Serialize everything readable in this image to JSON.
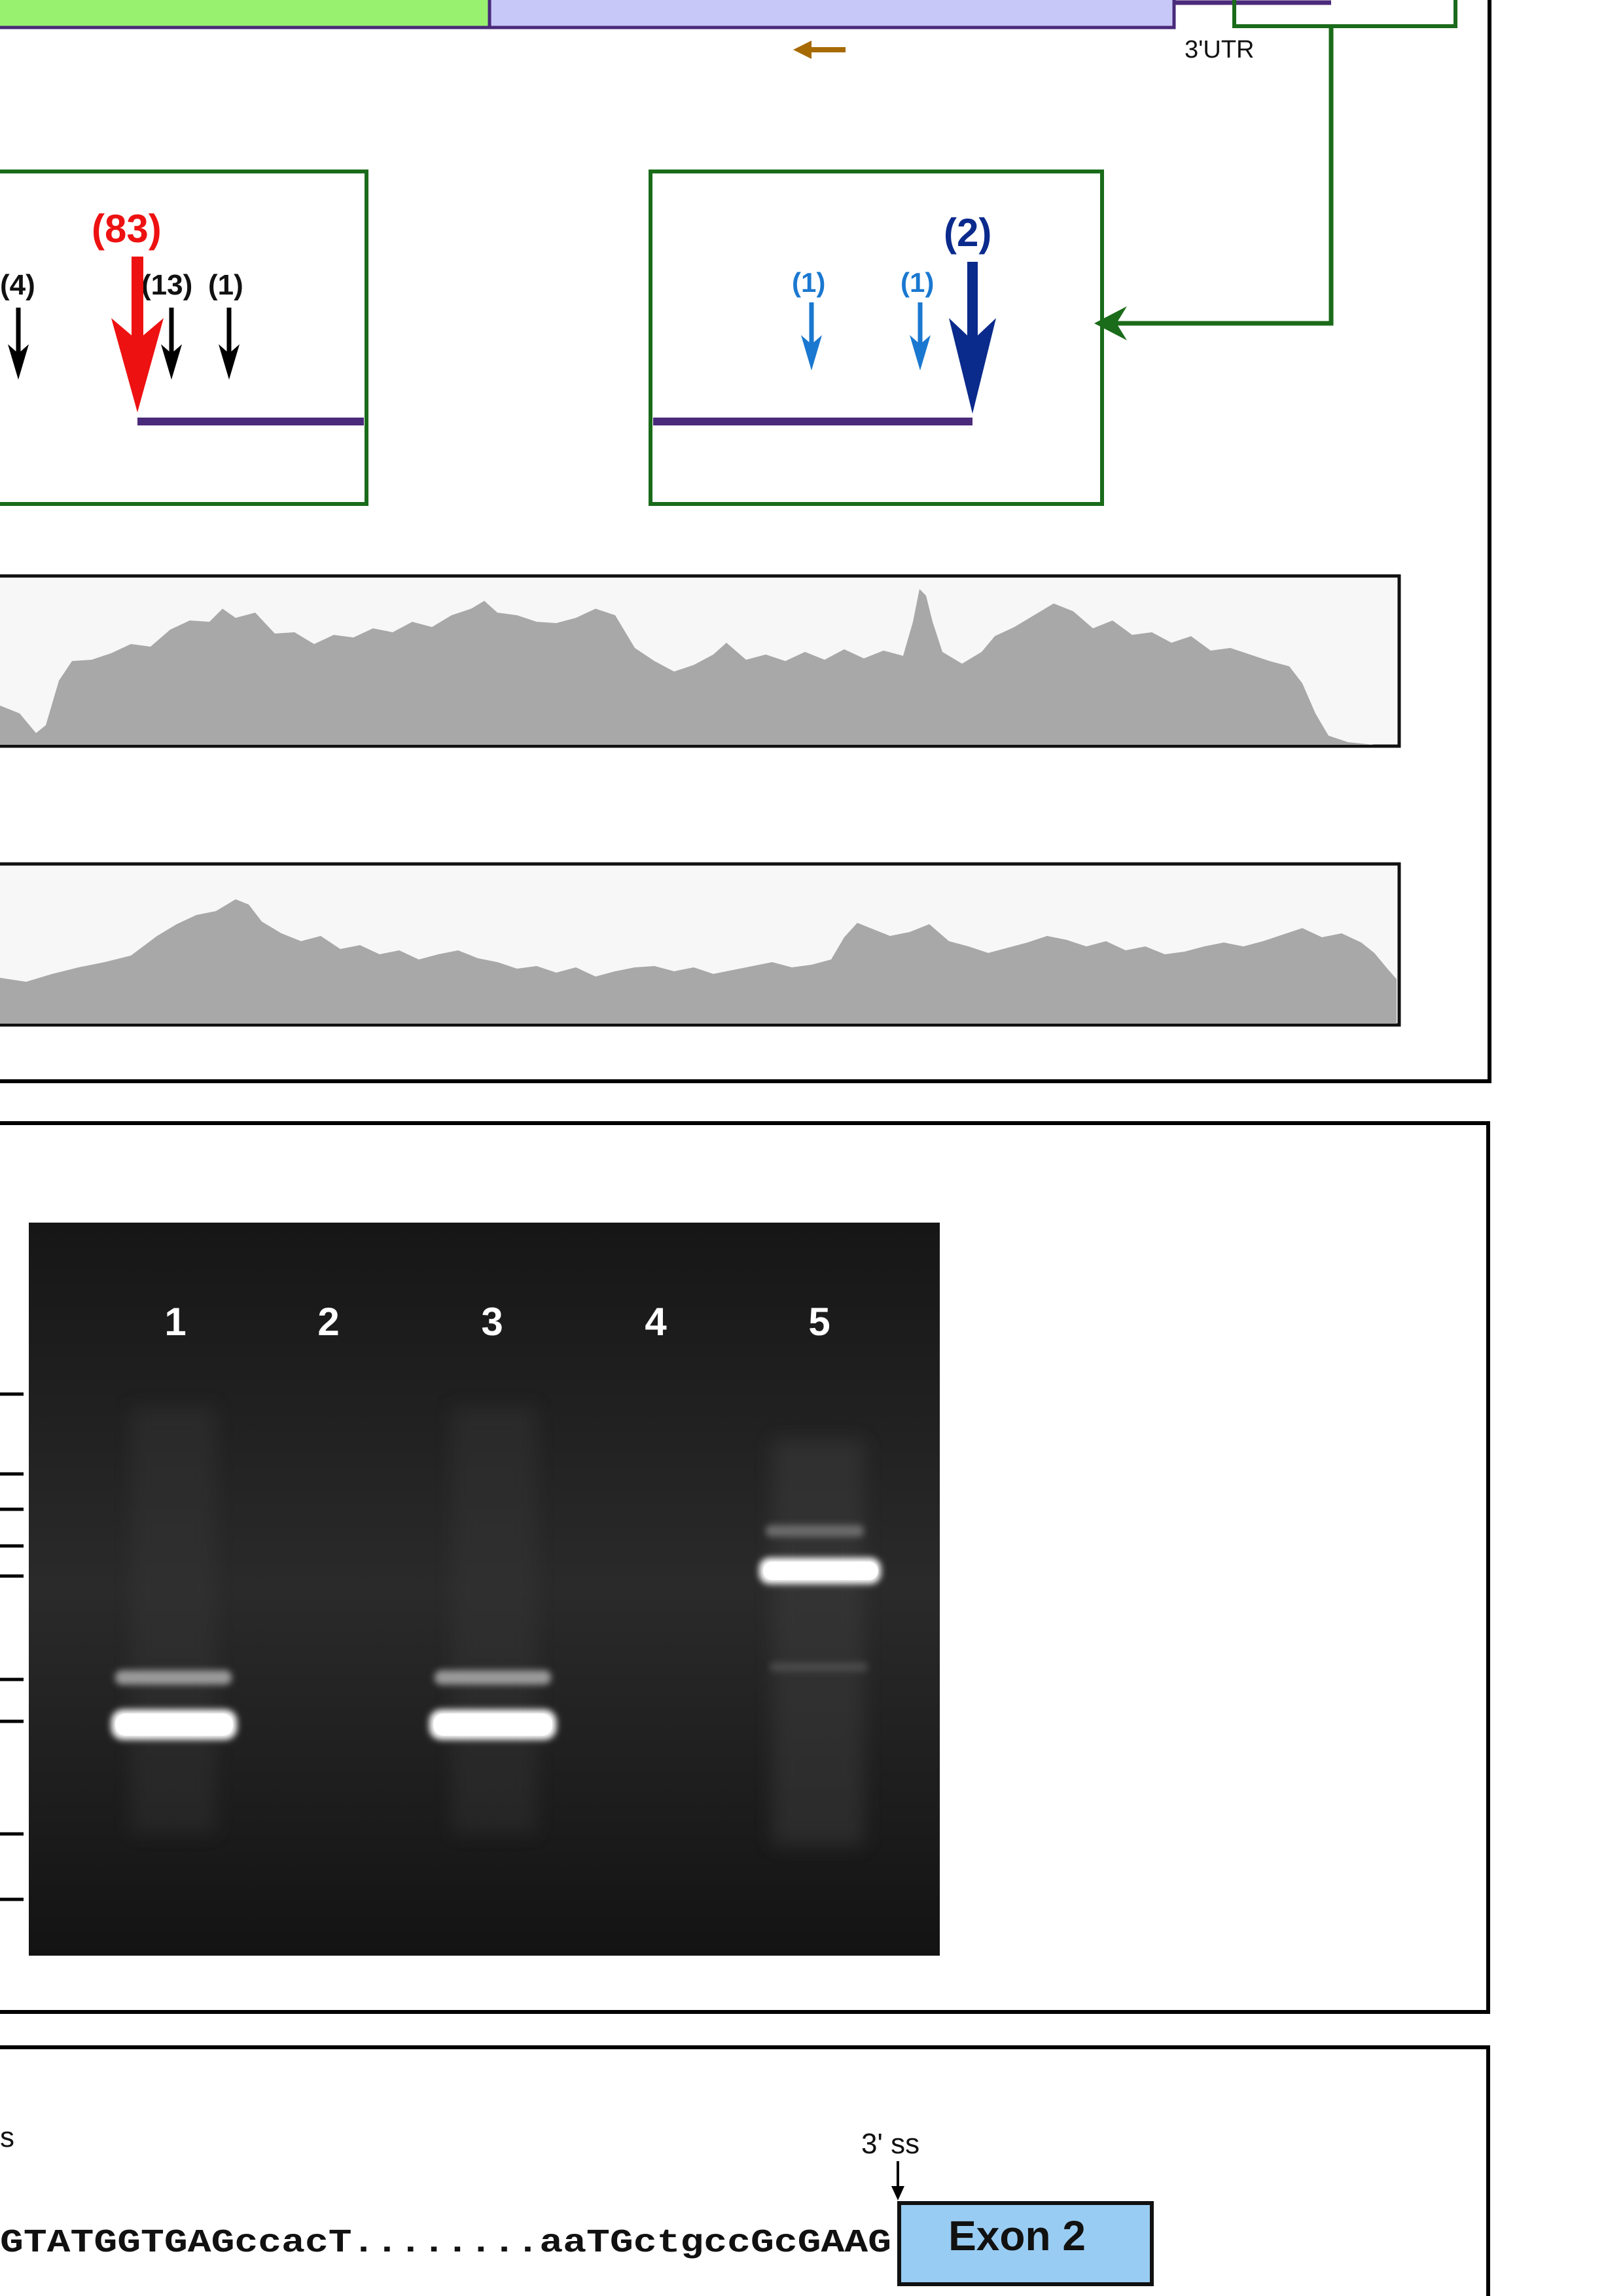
{
  "panel_a": {
    "utr_label": "3'UTR",
    "left_zoom_counts": [
      "(4)",
      "(83)",
      "(13)",
      "(1)"
    ],
    "right_zoom_counts": [
      "(1)",
      "(1)",
      "(2)"
    ]
  },
  "panel_b": {
    "lane_labels": [
      "1",
      "2",
      "3",
      "4",
      "5"
    ]
  },
  "panel_c": {
    "ss_label_left": "s",
    "ss_label_right": "3' ss",
    "sequence": "GTATGGTGAGccacT........aaTGctgccGcGAAG",
    "exon_label": "Exon 2"
  },
  "colors": {
    "green_box": "#1a6b1a",
    "exon_green": "#99f26f",
    "exon_lavender": "#c8c8f8",
    "gene_purple": "#4a2a7a",
    "red_arrow": "#ee1111",
    "dark_blue_arrow": "#0a2a8c",
    "light_blue_arrow": "#1a78d0",
    "brown_arrow": "#a66a00",
    "coverage_gray": "#a8a8a8",
    "exon2_fill": "#99ccf2"
  }
}
